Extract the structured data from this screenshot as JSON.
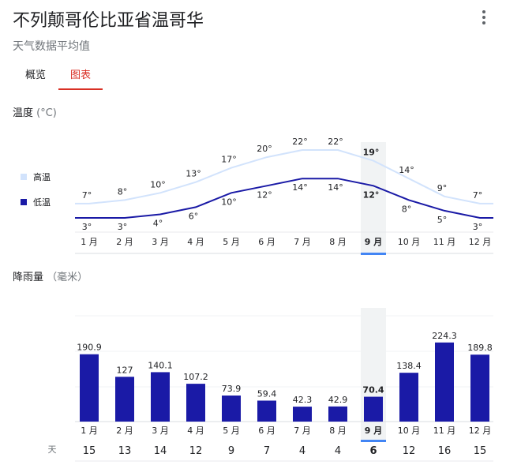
{
  "header": {
    "title": "不列颠哥伦比亚省温哥华",
    "subtitle": "天气数据平均值"
  },
  "tabs": [
    {
      "label": "概览",
      "active": false
    },
    {
      "label": "图表",
      "active": true
    }
  ],
  "temperature_section": {
    "title": "温度",
    "unit": "(°C)",
    "legend_high": "高温",
    "legend_low": "低温"
  },
  "rain_section": {
    "title": "降雨量",
    "unit": "（毫米）",
    "days_label": "天"
  },
  "selected_month_index": 8,
  "colors": {
    "high_line": "#d2e3fc",
    "low_line": "#1a1aa6",
    "bar": "#1a1aa6",
    "selected_band": "#f1f3f4",
    "selected_marker": "#4285f4",
    "active_tab": "#d93025"
  },
  "chart_data": [
    {
      "type": "line",
      "categories": [
        "1 月",
        "2 月",
        "3 月",
        "4 月",
        "5 月",
        "6 月",
        "7 月",
        "8 月",
        "9 月",
        "10 月",
        "11 月",
        "12 月"
      ],
      "series": [
        {
          "name": "高温",
          "values": [
            7,
            8,
            10,
            13,
            17,
            20,
            22,
            22,
            19,
            14,
            9,
            7
          ]
        },
        {
          "name": "低温",
          "values": [
            3,
            3,
            4,
            6,
            10,
            12,
            14,
            14,
            12,
            8,
            5,
            3
          ]
        }
      ],
      "title": "温度",
      "ylabel": "(°C)",
      "value_suffix": "°",
      "ylim": [
        3,
        22
      ],
      "grid": false,
      "legend": "left"
    },
    {
      "type": "bar",
      "categories": [
        "1 月",
        "2 月",
        "3 月",
        "4 月",
        "5 月",
        "6 月",
        "7 月",
        "8 月",
        "9 月",
        "10 月",
        "11 月",
        "12 月"
      ],
      "values": [
        190.9,
        127,
        140.1,
        107.2,
        73.9,
        59.4,
        42.3,
        42.9,
        70.4,
        138.4,
        224.3,
        189.8
      ],
      "days": [
        15,
        13,
        14,
        12,
        9,
        7,
        4,
        4,
        6,
        12,
        16,
        15
      ],
      "title": "降雨量",
      "ylabel": "（毫米）",
      "ylim": [
        0,
        300
      ],
      "grid": true
    }
  ]
}
